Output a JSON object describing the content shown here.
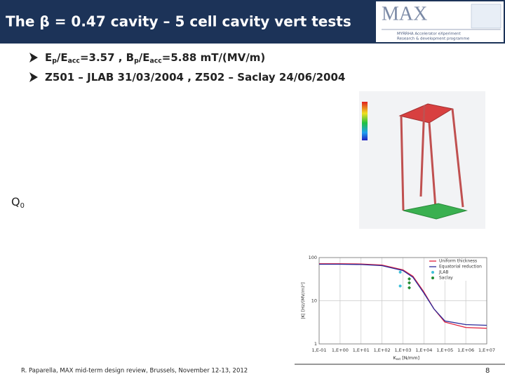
{
  "header": {
    "title": "The β = 0.47 cavity – 5 cell cavity vert tests",
    "logo": "MAX",
    "logo_line_1": "MYRRHA Accelerator eXperiment",
    "logo_line_2": "Research & development programme"
  },
  "bullets": [
    [
      {
        "text": "E"
      },
      {
        "text": "p",
        "sub": true
      },
      {
        "text": "/E"
      },
      {
        "text": "acc",
        "sub": true
      },
      {
        "text": "=3.57 , B"
      },
      {
        "text": "p",
        "sub": true
      },
      {
        "text": "/E"
      },
      {
        "text": "acc",
        "sub": true
      },
      {
        "text": "=5.88 mT/(MV/m)"
      }
    ],
    [
      {
        "text": "Z501 – JLAB 31/03/2004 , Z502 – Saclay 24/06/2004"
      }
    ]
  ],
  "q_label": [
    {
      "text": "Q"
    },
    {
      "text": "0",
      "sub": true
    }
  ],
  "chart_data": {
    "type": "line",
    "x_scale": "log",
    "y_scale": "log",
    "grid": true,
    "legend": "top-right",
    "y_label": "|K| [Hz/(MV/m)²]",
    "x_label": [
      {
        "text": "K"
      },
      {
        "text": "ext",
        "sub": true
      },
      {
        "text": " [N/mm]"
      }
    ],
    "xlim": [
      0.1,
      10000000
    ],
    "ylim": [
      1,
      100
    ],
    "xticks": [
      {
        "value": 0.1,
        "label": "1,E-01"
      },
      {
        "value": 1,
        "label": "1,E+00"
      },
      {
        "value": 10,
        "label": "1,E+01"
      },
      {
        "value": 100,
        "label": "1,E+02"
      },
      {
        "value": 1000,
        "label": "1,E+03"
      },
      {
        "value": 10000,
        "label": "1,E+04"
      },
      {
        "value": 100000,
        "label": "1,E+05"
      },
      {
        "value": 1000000,
        "label": "1,E+06"
      },
      {
        "value": 10000000,
        "label": "1,E+07"
      }
    ],
    "yticks": [
      1,
      10,
      100
    ],
    "series": [
      {
        "name": "Uniform thickness",
        "color": "#e0203c",
        "style": "line",
        "x": [
          0.1,
          1,
          10,
          100,
          1000,
          3000,
          10000,
          30000,
          100000,
          1000000,
          10000000
        ],
        "values": [
          72,
          72,
          71,
          67,
          52,
          37,
          16,
          6.5,
          3.2,
          2.4,
          2.3
        ]
      },
      {
        "name": "Equatorial reduction",
        "color": "#2a2a9a",
        "style": "line",
        "x": [
          0.1,
          1,
          10,
          100,
          1000,
          3000,
          10000,
          30000,
          100000,
          1000000,
          10000000
        ],
        "values": [
          70,
          70,
          69,
          65,
          50,
          35,
          15,
          6.5,
          3.4,
          2.8,
          2.7
        ]
      },
      {
        "name": "JLAB",
        "color": "#40c0d8",
        "style": "circle",
        "x": [
          740,
          740
        ],
        "values": [
          46,
          22
        ]
      },
      {
        "name": "Saclay",
        "color": "#208a30",
        "style": "diamond",
        "x": [
          2000,
          2000,
          2000
        ],
        "values": [
          32,
          26,
          20
        ]
      }
    ]
  },
  "footer": {
    "citation": "R. Paparella, MAX mid-term design review, Brussels, November 12-13, 2012",
    "page": "8"
  }
}
